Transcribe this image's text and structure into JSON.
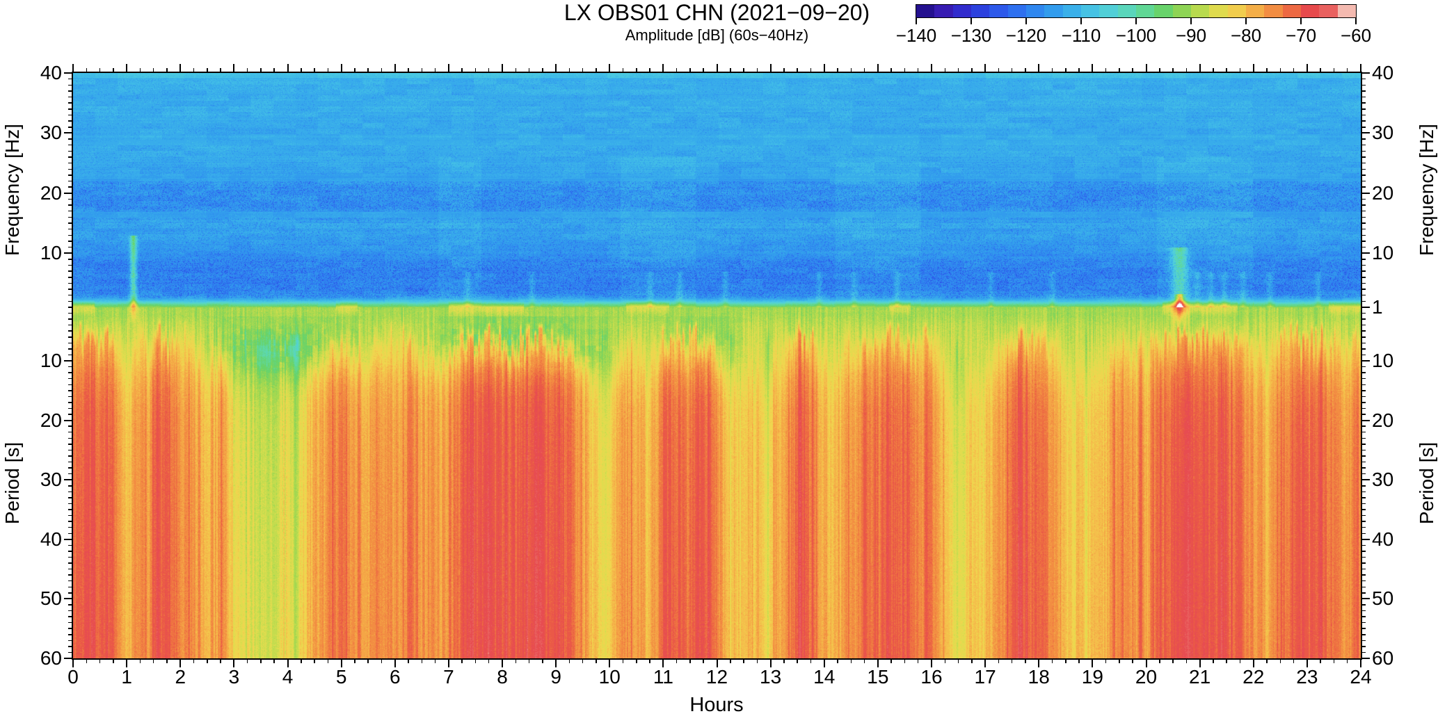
{
  "figure": {
    "title": "LX OBS01 CHN (2021−09−20)",
    "subtitle": "Amplitude [dB] (60s−40Hz)"
  },
  "axes": {
    "x": {
      "title": "Hours",
      "min": 0,
      "max": 24,
      "major_step": 1,
      "minor_step": 0.25,
      "labels": [
        "0",
        "1",
        "2",
        "3",
        "4",
        "5",
        "6",
        "7",
        "8",
        "9",
        "10",
        "11",
        "12",
        "13",
        "14",
        "15",
        "16",
        "17",
        "18",
        "19",
        "20",
        "21",
        "22",
        "23",
        "24"
      ]
    },
    "y_top": {
      "title": "Frequency [Hz]",
      "min": 1,
      "max": 40,
      "minor_step": 1,
      "left_tick_values": [
        40,
        30,
        20,
        10
      ],
      "left_tick_labels": [
        "40",
        "30",
        "20",
        "10"
      ],
      "right_tick_values": [
        40,
        30,
        20,
        10,
        1
      ],
      "right_tick_labels": [
        "40",
        "30",
        "20",
        "10",
        "1"
      ]
    },
    "y_bottom": {
      "title": "Period [s]",
      "min": 1,
      "max": 60,
      "minor_step": 1,
      "tick_values": [
        10,
        20,
        30,
        40,
        50,
        60
      ],
      "tick_labels": [
        "10",
        "20",
        "30",
        "40",
        "50",
        "60"
      ]
    }
  },
  "colorbar": {
    "min": -140,
    "max": -60,
    "segments": 24,
    "tick_values": [
      -140,
      -130,
      -120,
      -110,
      -100,
      -90,
      -80,
      -70,
      -60
    ],
    "tick_labels": [
      "−140",
      "−130",
      "−120",
      "−110",
      "−100",
      "−90",
      "−80",
      "−70",
      "−60"
    ]
  },
  "chart_data": {
    "type": "heatmap",
    "title": "LX OBS01 CHN (2021−09−20)",
    "value_label": "Amplitude [dB] (60s−40Hz)",
    "x": {
      "label": "Hours",
      "range": [
        0,
        24
      ]
    },
    "y": {
      "top": {
        "label": "Frequency [Hz]",
        "range": [
          40,
          1
        ],
        "scale": "linear"
      },
      "bottom": {
        "label": "Period [s]",
        "range": [
          1,
          60
        ],
        "scale": "linear"
      },
      "split": "1 Hz = 1 s boundary"
    },
    "colormap": {
      "units": "dB",
      "range": [
        -140,
        -60
      ],
      "stops": [
        [
          -140,
          "#150d7e"
        ],
        [
          -137,
          "#31169e"
        ],
        [
          -134,
          "#3a20bc"
        ],
        [
          -131,
          "#2f30d2"
        ],
        [
          -128,
          "#2c44e0"
        ],
        [
          -125,
          "#2d59ea"
        ],
        [
          -122,
          "#2e6eef"
        ],
        [
          -119,
          "#2f83f0"
        ],
        [
          -116,
          "#3096ee"
        ],
        [
          -113,
          "#36a9ec"
        ],
        [
          -110,
          "#40bbe8"
        ],
        [
          -107,
          "#4bc9e2"
        ],
        [
          -104,
          "#55d3d2"
        ],
        [
          -101,
          "#5cd8b5"
        ],
        [
          -98,
          "#61d792"
        ],
        [
          -95,
          "#68d36b"
        ],
        [
          -92,
          "#8ad457"
        ],
        [
          -89,
          "#b0da4e"
        ],
        [
          -86,
          "#d8dd4e"
        ],
        [
          -83,
          "#efd94f"
        ],
        [
          -80,
          "#f4bf4b"
        ],
        [
          -77,
          "#f4a145"
        ],
        [
          -74,
          "#f18341"
        ],
        [
          -71,
          "#ec6244"
        ],
        [
          -68,
          "#e7484e"
        ],
        [
          -65,
          "#e9615f"
        ],
        [
          -63,
          "#ee8d84"
        ],
        [
          -61.5,
          "#f5c0b6"
        ],
        [
          -60,
          "#ffffff"
        ]
      ]
    },
    "freq_profile_db": [
      [
        1,
        -91
      ],
      [
        1.35,
        -96
      ],
      [
        1.7,
        -102
      ],
      [
        2.2,
        -111
      ],
      [
        3,
        -115.5
      ],
      [
        4,
        -117
      ],
      [
        6,
        -117.5
      ],
      [
        8,
        -117
      ],
      [
        10,
        -115.5
      ],
      [
        12,
        -114
      ],
      [
        15,
        -113
      ],
      [
        18,
        -115.5
      ],
      [
        21,
        -115
      ],
      [
        24,
        -113
      ],
      [
        30,
        -112.5
      ],
      [
        36,
        -112
      ],
      [
        40,
        -111.5
      ]
    ],
    "period_profile_db": [
      [
        1,
        -90.5
      ],
      [
        1.5,
        -89.5
      ],
      [
        2,
        -90
      ],
      [
        3,
        -89
      ],
      [
        4,
        -88
      ],
      [
        6,
        -87
      ],
      [
        8,
        -85.5
      ],
      [
        10,
        -84.5
      ],
      [
        12,
        -83
      ],
      [
        15,
        -81.5
      ],
      [
        18,
        -80.5
      ],
      [
        22,
        -80
      ],
      [
        30,
        -79.5
      ],
      [
        45,
        -79
      ],
      [
        60,
        -78.5
      ]
    ],
    "low_band_profile_db": [
      9,
      9,
      9,
      7,
      -2,
      2,
      8,
      9,
      2,
      5,
      -1,
      3,
      -4,
      -7,
      -8,
      -8,
      -7,
      -5,
      1,
      3,
      6,
      3,
      2,
      5,
      3,
      7,
      2,
      1,
      2,
      8,
      9,
      10,
      10,
      8,
      10,
      10,
      9,
      7,
      2,
      -3,
      -2,
      6,
      3,
      2,
      8,
      9,
      9,
      9,
      6,
      -1,
      -3,
      -2,
      -3,
      5,
      8,
      7,
      3,
      0,
      4,
      7,
      8,
      9,
      8,
      7,
      5,
      -2,
      -4,
      -3,
      -2,
      4,
      8,
      9,
      7,
      3,
      -2,
      -3,
      0,
      3,
      5,
      2,
      4,
      9,
      10,
      10,
      10,
      10,
      9,
      7,
      2,
      0,
      7,
      8,
      6,
      9,
      7,
      5
    ],
    "texture": {
      "fleck_bands": [
        {
          "f": [
            17,
            22
          ],
          "prob": 0.3,
          "depth": 6
        },
        {
          "f": [
            9,
            16
          ],
          "prob": 0.2,
          "depth": 5
        },
        {
          "f": [
            2.6,
            9
          ],
          "prob": 0.32,
          "depth": 6
        },
        {
          "f": [
            23,
            28
          ],
          "prob": 0.1,
          "depth": 4
        },
        {
          "f": [
            30,
            39
          ],
          "prob": 0.1,
          "depth": 3.5
        }
      ],
      "top_edge_boost_db": 3,
      "quantize_db": 2.5,
      "soft_column_db": 1.6,
      "bright_band_db": 6
    },
    "events": {
      "major": [
        {
          "hour": 1.12,
          "width": 0.045,
          "f_max": 13,
          "db": 18
        },
        {
          "hour": 20.62,
          "width": 0.11,
          "f_max": 11,
          "db": 15
        },
        {
          "hour": 20.62,
          "width": 0.05,
          "f_max": 3.2,
          "db": 20
        }
      ],
      "faint_hours": [
        7.35,
        8.55,
        10.75,
        11.3,
        12.15,
        13.9,
        14.55,
        15.35,
        17.1,
        18.25,
        20.95,
        21.2,
        21.45,
        21.8,
        22.3,
        23.2
      ],
      "faint": {
        "width": 0.04,
        "f_max": 7,
        "db": 5
      }
    },
    "green_patches": [
      {
        "hours": [
          2.3,
          5.7
        ],
        "strength": 9
      },
      {
        "hours": [
          6.3,
          10.3
        ],
        "strength": 12
      },
      {
        "hours": [
          10.8,
          12.6
        ],
        "strength": 7
      }
    ],
    "bright_band_hours": [
      [
        0,
        0.4
      ],
      [
        4.9,
        5.3
      ],
      [
        7.0,
        8.4
      ],
      [
        10.3,
        11.1
      ],
      [
        15.2,
        15.6
      ],
      [
        20.3,
        21.7
      ],
      [
        23.4,
        24
      ]
    ],
    "soft_columns_hours": [
      [
        6.8,
        7.6
      ],
      [
        10.2,
        11.6
      ],
      [
        14.2,
        15.8
      ],
      [
        20.2,
        22.0
      ]
    ]
  }
}
